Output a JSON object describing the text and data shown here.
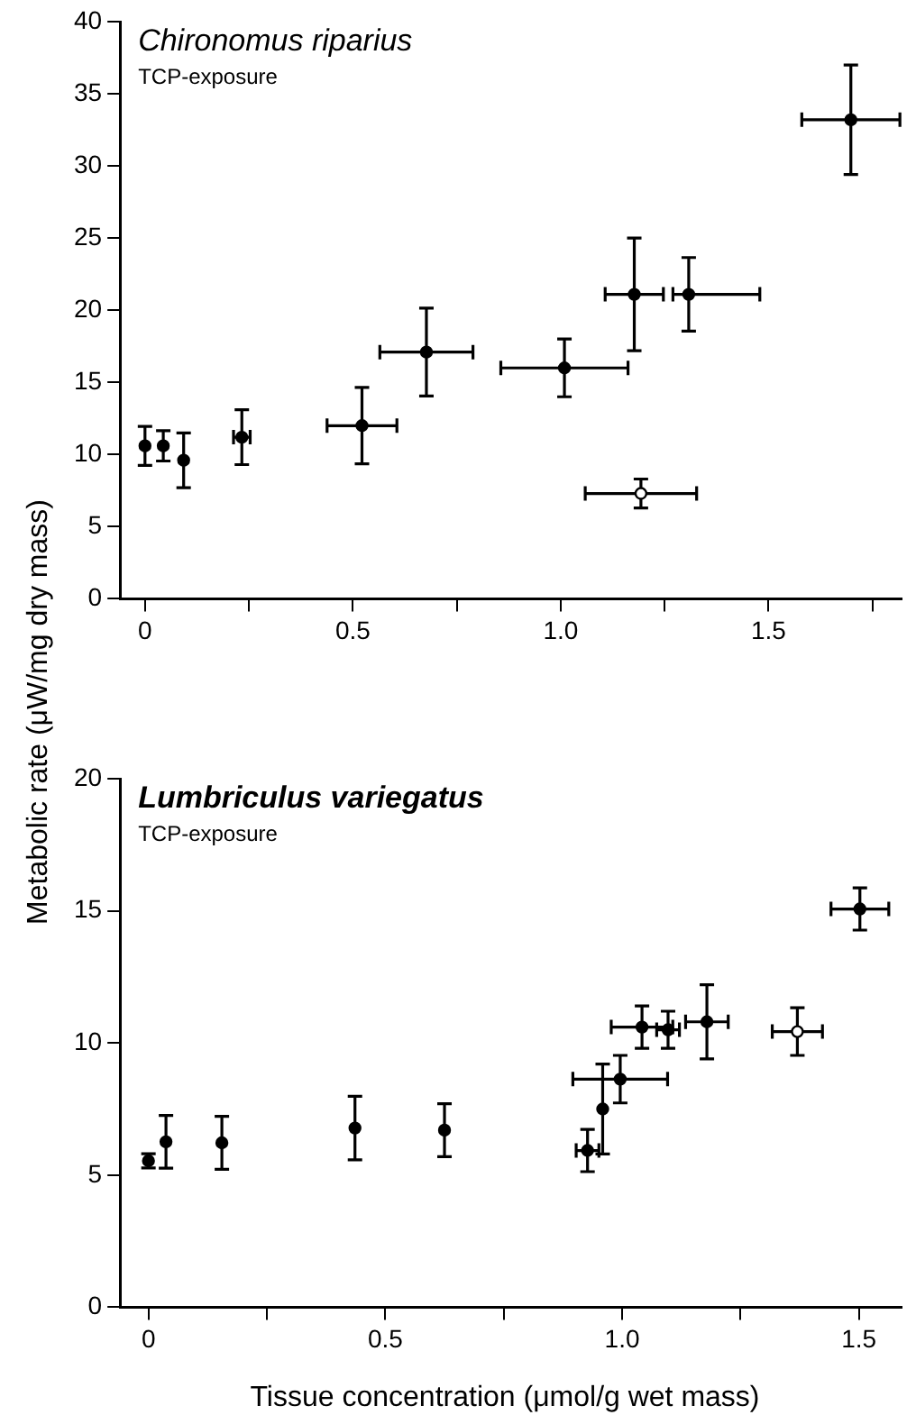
{
  "chart_data": [
    {
      "type": "scatter",
      "title": "Chironomus riparius",
      "subtitle": "TCP-exposure",
      "ylabel": "Metabolic rate (μW/mg dry mass)",
      "marker": "circle",
      "legend": false,
      "grid": false,
      "xlim": [
        -0.06,
        1.82
      ],
      "xticks": [
        0,
        {
          "value": 0.25,
          "label": null
        },
        {
          "value": 0.5,
          "label": "0.5"
        },
        {
          "value": 0.75,
          "label": null
        },
        {
          "value": 1,
          "label": "1.0"
        },
        {
          "value": 1.25,
          "label": null
        },
        {
          "value": 1.5,
          "label": "1.5"
        },
        {
          "value": 1.75,
          "label": null
        }
      ],
      "ylim": [
        0,
        40
      ],
      "yticks": [
        0,
        5,
        10,
        15,
        20,
        25,
        30,
        35,
        40
      ],
      "series": [
        {
          "color": "#000000",
          "x": [
            0,
            0.044,
            0.093,
            0.233,
            0.522,
            0.677,
            1.009,
            1.177,
            1.308,
            1.698
          ],
          "values": [
            10.6,
            10.6,
            9.6,
            11.2,
            12.0,
            17.1,
            16.0,
            21.1,
            21.1,
            33.2
          ],
          "errors": [
            1.35,
            1.05,
            1.9,
            1.9,
            2.65,
            3.05,
            2.0,
            3.9,
            2.55,
            3.8
          ],
          "xerrors": [
            null,
            null,
            null,
            0.02,
            0.084,
            0.112,
            0.153,
            0.07,
            [
              1.27,
              1.479
            ],
            0.118
          ]
        },
        {
          "color": "#ffffff",
          "x": [
            1.193
          ],
          "values": [
            7.3
          ],
          "errors": [
            1.0
          ],
          "xerrors": [
            0.134
          ]
        }
      ]
    },
    {
      "type": "scatter",
      "title": "Lumbriculus variegatus",
      "subtitle": "TCP-exposure",
      "xlabel": "Tissue concentration (μmol/g wet mass)",
      "marker": "circle",
      "legend": false,
      "grid": false,
      "xlim": [
        -0.06,
        1.59
      ],
      "xticks": [
        0,
        {
          "value": 0.25,
          "label": null
        },
        {
          "value": 0.5,
          "label": "0.5"
        },
        {
          "value": 0.75,
          "label": null
        },
        {
          "value": 1,
          "label": "1.0"
        },
        {
          "value": 1.25,
          "label": null
        },
        {
          "value": 1.5,
          "label": "1.5"
        }
      ],
      "ylim": [
        0,
        20
      ],
      "yticks": [
        0,
        5,
        10,
        15,
        20
      ],
      "series": [
        {
          "color": "#000000",
          "x": [
            0,
            0.037,
            0.155,
            0.436,
            0.625,
            0.927,
            0.959,
            0.996,
            1.042,
            1.097,
            1.179,
            1.502
          ],
          "values": [
            5.54,
            6.26,
            6.22,
            6.78,
            6.7,
            5.93,
            7.5,
            8.63,
            10.6,
            10.5,
            10.8,
            15.07
          ],
          "errors": [
            0.27,
            1.0,
            1.0,
            1.2,
            1.0,
            0.8,
            1.7,
            0.9,
            0.8,
            0.7,
            1.4,
            0.8
          ],
          "xerrors": [
            null,
            null,
            null,
            null,
            null,
            0.024,
            null,
            0.1,
            0.065,
            0.024,
            0.045,
            0.061
          ]
        },
        {
          "color": "#ffffff",
          "x": [
            1.37
          ],
          "values": [
            10.43
          ],
          "errors": [
            0.9
          ],
          "xerrors": [
            0.053
          ]
        }
      ]
    }
  ]
}
